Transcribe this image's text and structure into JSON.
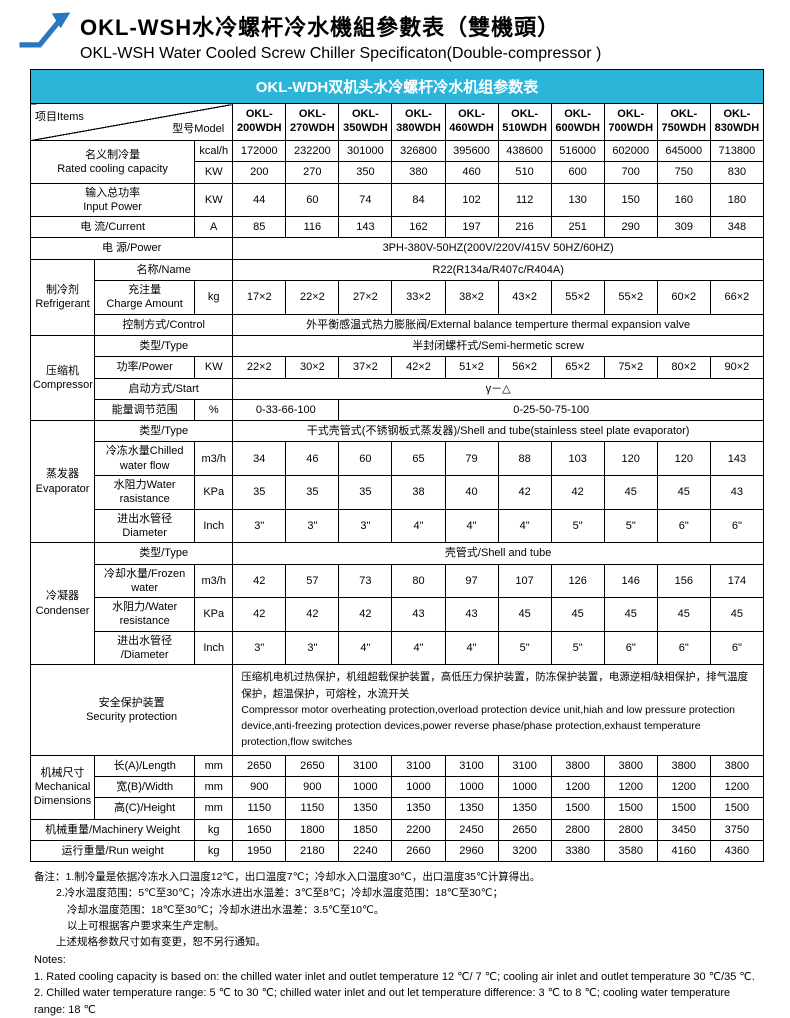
{
  "page": {
    "title_cn": "OKL-WSH水冷螺杆冷水機組參數表（雙機頭）",
    "title_en": "OKL-WSH Water Cooled Screw Chiller Specificaton(Double-compressor )"
  },
  "colors": {
    "banner": "#2ab5d9",
    "logo": "#2878c0"
  },
  "table": {
    "banner": "OKL-WDH双机头水冷螺杆冷水机组参数表",
    "corner_items": "项目Items",
    "corner_model": "型号Model",
    "model_prefix": "OKL-",
    "models": [
      "200WDH",
      "270WDH",
      "350WDH",
      "380WDH",
      "460WDH",
      "510WDH",
      "600WDH",
      "700WDH",
      "750WDH",
      "830WDH"
    ],
    "rows": [
      [
        {
          "t": "名义制冷量\nRated cooling capacity",
          "cs": 2,
          "rs": 2,
          "k": "lbl"
        },
        {
          "t": "kcal/h",
          "k": "unit"
        },
        {
          "t": "172000"
        },
        {
          "t": "232200"
        },
        {
          "t": "301000"
        },
        {
          "t": "326800"
        },
        {
          "t": "395600"
        },
        {
          "t": "438600"
        },
        {
          "t": "516000"
        },
        {
          "t": "602000"
        },
        {
          "t": "645000"
        },
        {
          "t": "713800"
        }
      ],
      [
        {
          "t": "KW",
          "k": "unit"
        },
        {
          "t": "200"
        },
        {
          "t": "270"
        },
        {
          "t": "350"
        },
        {
          "t": "380"
        },
        {
          "t": "460"
        },
        {
          "t": "510"
        },
        {
          "t": "600"
        },
        {
          "t": "700"
        },
        {
          "t": "750"
        },
        {
          "t": "830"
        }
      ],
      [
        {
          "t": "输入总功率\nInput Power",
          "cs": 2,
          "k": "lbl"
        },
        {
          "t": "KW",
          "k": "unit"
        },
        {
          "t": "44"
        },
        {
          "t": "60"
        },
        {
          "t": "74"
        },
        {
          "t": "84"
        },
        {
          "t": "102"
        },
        {
          "t": "112"
        },
        {
          "t": "130"
        },
        {
          "t": "150"
        },
        {
          "t": "160"
        },
        {
          "t": "180"
        }
      ],
      [
        {
          "t": "电  流/Current",
          "cs": 2,
          "k": "lbl"
        },
        {
          "t": "A",
          "k": "unit"
        },
        {
          "t": "85"
        },
        {
          "t": "116"
        },
        {
          "t": "143"
        },
        {
          "t": "162"
        },
        {
          "t": "197"
        },
        {
          "t": "216"
        },
        {
          "t": "251"
        },
        {
          "t": "290"
        },
        {
          "t": "309"
        },
        {
          "t": "348"
        }
      ],
      [
        {
          "t": "电  源/Power",
          "cs": 3,
          "k": "lbl"
        },
        {
          "t": "3PH-380V-50HZ(200V/220V/415V  50HZ/60HZ)",
          "cs": 10,
          "k": "span"
        }
      ],
      [
        {
          "t": "制冷剂\nRefrigerant",
          "rs": 3,
          "k": "glbl"
        },
        {
          "t": "名称/Name",
          "cs": 2,
          "k": "lbl"
        },
        {
          "t": "R22(R134a/R407c/R404A)",
          "cs": 10,
          "k": "span"
        }
      ],
      [
        {
          "t": "充注量\nCharge Amount",
          "k": "lbl"
        },
        {
          "t": "kg",
          "k": "unit"
        },
        {
          "t": "17×2"
        },
        {
          "t": "22×2"
        },
        {
          "t": "27×2"
        },
        {
          "t": "33×2"
        },
        {
          "t": "38×2"
        },
        {
          "t": "43×2"
        },
        {
          "t": "55×2"
        },
        {
          "t": "55×2"
        },
        {
          "t": "60×2"
        },
        {
          "t": "66×2"
        }
      ],
      [
        {
          "t": "控制方式/Control",
          "cs": 2,
          "k": "lbl"
        },
        {
          "t": "外平衡感温式热力膨胀阀/External balance temperture thermal expansion valve",
          "cs": 10,
          "k": "span"
        }
      ],
      [
        {
          "t": "压缩机\nCompressor",
          "rs": 4,
          "k": "glbl"
        },
        {
          "t": "类型/Type",
          "cs": 2,
          "k": "lbl"
        },
        {
          "t": "半封闭螺杆式/Semi-hermetic screw",
          "cs": 10,
          "k": "span"
        }
      ],
      [
        {
          "t": "功率/Power",
          "k": "lbl"
        },
        {
          "t": "KW",
          "k": "unit"
        },
        {
          "t": "22×2"
        },
        {
          "t": "30×2"
        },
        {
          "t": "37×2"
        },
        {
          "t": "42×2"
        },
        {
          "t": "51×2"
        },
        {
          "t": "56×2"
        },
        {
          "t": "65×2"
        },
        {
          "t": "75×2"
        },
        {
          "t": "80×2"
        },
        {
          "t": "90×2"
        }
      ],
      [
        {
          "t": "启动方式/Start",
          "cs": 2,
          "k": "lbl"
        },
        {
          "t": "γ－△",
          "cs": 10,
          "k": "span"
        }
      ],
      [
        {
          "t": "能量调节范围",
          "k": "lbl"
        },
        {
          "t": "%",
          "k": "unit"
        },
        {
          "t": "0-33-66-100",
          "cs": 2,
          "k": "span"
        },
        {
          "t": "0-25-50-75-100",
          "cs": 8,
          "k": "span"
        }
      ],
      [
        {
          "t": "蒸发器\nEvaporator",
          "rs": 4,
          "k": "glbl"
        },
        {
          "t": "类型/Type",
          "cs": 2,
          "k": "lbl"
        },
        {
          "t": "干式壳管式(不锈钢板式蒸发器)/Shell and tube(stainless steel plate evaporator)",
          "cs": 10,
          "k": "span"
        }
      ],
      [
        {
          "t": "冷冻水量Chilled\nwater flow",
          "k": "lbl"
        },
        {
          "t": "m3/h",
          "k": "unit"
        },
        {
          "t": "34"
        },
        {
          "t": "46"
        },
        {
          "t": "60"
        },
        {
          "t": "65"
        },
        {
          "t": "79"
        },
        {
          "t": "88"
        },
        {
          "t": "103"
        },
        {
          "t": "120"
        },
        {
          "t": "120"
        },
        {
          "t": "143"
        }
      ],
      [
        {
          "t": "水阻力Water\nrasistance",
          "k": "lbl"
        },
        {
          "t": "KPa",
          "k": "unit"
        },
        {
          "t": "35"
        },
        {
          "t": "35"
        },
        {
          "t": "35"
        },
        {
          "t": "38"
        },
        {
          "t": "40"
        },
        {
          "t": "42"
        },
        {
          "t": "42"
        },
        {
          "t": "45"
        },
        {
          "t": "45"
        },
        {
          "t": "43"
        }
      ],
      [
        {
          "t": "进出水管径\nDiameter",
          "k": "lbl"
        },
        {
          "t": "Inch",
          "k": "unit"
        },
        {
          "t": "3\""
        },
        {
          "t": "3\""
        },
        {
          "t": "3\""
        },
        {
          "t": "4\""
        },
        {
          "t": "4\""
        },
        {
          "t": "4\""
        },
        {
          "t": "5\""
        },
        {
          "t": "5\""
        },
        {
          "t": "6\""
        },
        {
          "t": "6\""
        }
      ],
      [
        {
          "t": "冷凝器\nCondenser",
          "rs": 4,
          "k": "glbl"
        },
        {
          "t": "类型/Type",
          "cs": 2,
          "k": "lbl"
        },
        {
          "t": "壳管式/Shell and tube",
          "cs": 10,
          "k": "span"
        }
      ],
      [
        {
          "t": "冷却水量/Frozen\nwater",
          "k": "lbl"
        },
        {
          "t": "m3/h",
          "k": "unit"
        },
        {
          "t": "42"
        },
        {
          "t": "57"
        },
        {
          "t": "73"
        },
        {
          "t": "80"
        },
        {
          "t": "97"
        },
        {
          "t": "107"
        },
        {
          "t": "126"
        },
        {
          "t": "146"
        },
        {
          "t": "156"
        },
        {
          "t": "174"
        }
      ],
      [
        {
          "t": "水阻力/Water\nresistance",
          "k": "lbl"
        },
        {
          "t": "KPa",
          "k": "unit"
        },
        {
          "t": "42"
        },
        {
          "t": "42"
        },
        {
          "t": "42"
        },
        {
          "t": "43"
        },
        {
          "t": "43"
        },
        {
          "t": "45"
        },
        {
          "t": "45"
        },
        {
          "t": "45"
        },
        {
          "t": "45"
        },
        {
          "t": "45"
        }
      ],
      [
        {
          "t": "进出水管径\n/Diameter",
          "k": "lbl"
        },
        {
          "t": "Inch",
          "k": "unit"
        },
        {
          "t": "3\""
        },
        {
          "t": "3\""
        },
        {
          "t": "4\""
        },
        {
          "t": "4\""
        },
        {
          "t": "4\""
        },
        {
          "t": "5\""
        },
        {
          "t": "5\""
        },
        {
          "t": "6\""
        },
        {
          "t": "6\""
        },
        {
          "t": "6\""
        }
      ],
      [
        {
          "t": "安全保护装置\nSecurity protection",
          "cs": 3,
          "k": "lbl"
        },
        {
          "t": "压缩机电机过热保护，机组超载保护装置，高低压力保护装置，防冻保护装置，电源逆相/缺相保护，排气温度保护，超温保护，可熔栓，水流开关\nCompressor motor overheating protection,overload protection device unit,hiah and low pressure protection device,anti-freezing protection devices,power reverse phase/phase protection,exhaust temperature protection,flow switches",
          "cs": 10,
          "k": "left"
        }
      ],
      [
        {
          "t": "机械尺寸\nMechanical\nDimensions",
          "rs": 3,
          "k": "glbl"
        },
        {
          "t": "长(A)/Length",
          "k": "lbl"
        },
        {
          "t": "mm",
          "k": "unit"
        },
        {
          "t": "2650"
        },
        {
          "t": "2650"
        },
        {
          "t": "3100"
        },
        {
          "t": "3100"
        },
        {
          "t": "3100"
        },
        {
          "t": "3100"
        },
        {
          "t": "3800"
        },
        {
          "t": "3800"
        },
        {
          "t": "3800"
        },
        {
          "t": "3800"
        }
      ],
      [
        {
          "t": "宽(B)/Width",
          "k": "lbl"
        },
        {
          "t": "mm",
          "k": "unit"
        },
        {
          "t": "900"
        },
        {
          "t": "900"
        },
        {
          "t": "1000"
        },
        {
          "t": "1000"
        },
        {
          "t": "1000"
        },
        {
          "t": "1000"
        },
        {
          "t": "1200"
        },
        {
          "t": "1200"
        },
        {
          "t": "1200"
        },
        {
          "t": "1200"
        }
      ],
      [
        {
          "t": "高(C)/Height",
          "k": "lbl"
        },
        {
          "t": "mm",
          "k": "unit"
        },
        {
          "t": "1150"
        },
        {
          "t": "1150"
        },
        {
          "t": "1350"
        },
        {
          "t": "1350"
        },
        {
          "t": "1350"
        },
        {
          "t": "1350"
        },
        {
          "t": "1500"
        },
        {
          "t": "1500"
        },
        {
          "t": "1500"
        },
        {
          "t": "1500"
        }
      ],
      [
        {
          "t": "机械重量/Machinery Weight",
          "cs": 2,
          "k": "lbl"
        },
        {
          "t": "kg",
          "k": "unit"
        },
        {
          "t": "1650"
        },
        {
          "t": "1800"
        },
        {
          "t": "1850"
        },
        {
          "t": "2200"
        },
        {
          "t": "2450"
        },
        {
          "t": "2650"
        },
        {
          "t": "2800"
        },
        {
          "t": "2800"
        },
        {
          "t": "3450"
        },
        {
          "t": "3750"
        }
      ],
      [
        {
          "t": "运行重量/Run weight",
          "cs": 2,
          "k": "lbl"
        },
        {
          "t": "kg",
          "k": "unit"
        },
        {
          "t": "1950"
        },
        {
          "t": "2180"
        },
        {
          "t": "2240"
        },
        {
          "t": "2660"
        },
        {
          "t": "2960"
        },
        {
          "t": "3200"
        },
        {
          "t": "3380"
        },
        {
          "t": "3580"
        },
        {
          "t": "4160"
        },
        {
          "t": "4360"
        }
      ]
    ]
  },
  "notes": {
    "cn": [
      {
        "t": "备注：1.制冷量是依据冷冻水入口温度12℃，出口温度7℃；冷却水入口温度30℃，出口温度35℃计算得出。",
        "ind": 0
      },
      {
        "t": "2.冷水温度范围：5℃至30℃；冷冻水进出水温差：3℃至8℃；冷却水温度范围：18℃至30℃；",
        "ind": 2
      },
      {
        "t": "冷却水温度范围：18℃至30℃；冷却水进出水温差：3.5℃至10℃。",
        "ind": 3
      },
      {
        "t": "以上可根据客户要求来生产定制。",
        "ind": 3
      },
      {
        "t": "上述规格参数尺寸如有变更，恕不另行通知。",
        "ind": 2
      }
    ],
    "en": [
      {
        "t": "Notes:",
        "ind": 0
      },
      {
        "t": "1. Rated cooling capacity is based on: the chilled water inlet and outlet temperature 12 ℃/ 7 ℃; cooling air inlet and outlet temperature 30 ℃/35 ℃.",
        "ind": 0
      },
      {
        "t": "2. Chilled water temperature range: 5 ℃ to 30 ℃; chilled water inlet and out let temperature difference: 3 ℃ to 8 ℃; cooling water temperature range: 18 ℃",
        "ind": 0
      }
    ]
  }
}
